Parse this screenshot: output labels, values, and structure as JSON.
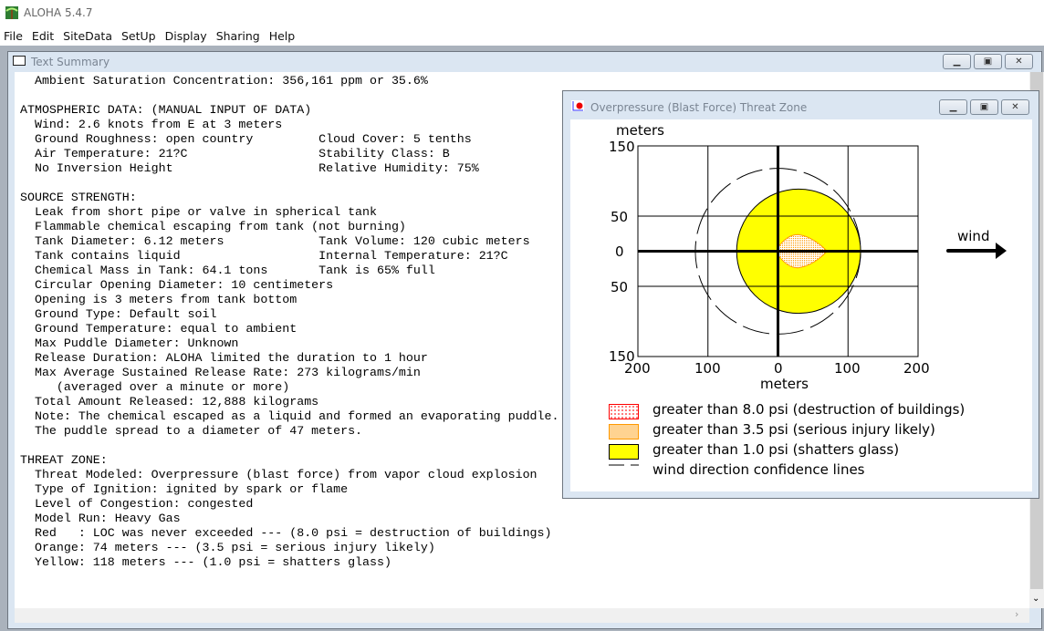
{
  "app": {
    "title": "ALOHA 5.4.7",
    "menu": [
      "File",
      "Edit",
      "SiteData",
      "SetUp",
      "Display",
      "Sharing",
      "Help"
    ]
  },
  "text_summary": {
    "title": "Text Summary",
    "lines": [
      {
        "l": "  Ambient Saturation Concentration: 356,161 ppm or 35.6%"
      },
      {
        "l": ""
      },
      {
        "l": "ATMOSPHERIC DATA: (MANUAL INPUT OF DATA)"
      },
      {
        "l": "  Wind: 2.6 knots from E at 3 meters"
      },
      {
        "l": "  Ground Roughness: open country",
        "r": "Cloud Cover: 5 tenths"
      },
      {
        "l": "  Air Temperature: 21?C",
        "r": "Stability Class: B"
      },
      {
        "l": "  No Inversion Height",
        "r": "Relative Humidity: 75%"
      },
      {
        "l": ""
      },
      {
        "l": "SOURCE STRENGTH:"
      },
      {
        "l": "  Leak from short pipe or valve in spherical tank"
      },
      {
        "l": "  Flammable chemical escaping from tank (not burning)"
      },
      {
        "l": "  Tank Diameter: 6.12 meters",
        "r": "Tank Volume: 120 cubic meters"
      },
      {
        "l": "  Tank contains liquid",
        "r": "Internal Temperature: 21?C"
      },
      {
        "l": "  Chemical Mass in Tank: 64.1 tons",
        "r": "Tank is 65% full"
      },
      {
        "l": "  Circular Opening Diameter: 10 centimeters"
      },
      {
        "l": "  Opening is 3 meters from tank bottom"
      },
      {
        "l": "  Ground Type: Default soil"
      },
      {
        "l": "  Ground Temperature: equal to ambient"
      },
      {
        "l": "  Max Puddle Diameter: Unknown"
      },
      {
        "l": "  Release Duration: ALOHA limited the duration to 1 hour"
      },
      {
        "l": "  Max Average Sustained Release Rate: 273 kilograms/min"
      },
      {
        "l": "     (averaged over a minute or more)"
      },
      {
        "l": "  Total Amount Released: 12,888 kilograms"
      },
      {
        "l": "  Note: The chemical escaped as a liquid and formed an evaporating puddle."
      },
      {
        "l": "  The puddle spread to a diameter of 47 meters."
      },
      {
        "l": ""
      },
      {
        "l": "THREAT ZONE:"
      },
      {
        "l": "  Threat Modeled: Overpressure (blast force) from vapor cloud explosion"
      },
      {
        "l": "  Type of Ignition: ignited by spark or flame"
      },
      {
        "l": "  Level of Congestion: congested"
      },
      {
        "l": "  Model Run: Heavy Gas"
      },
      {
        "l": "  Red   : LOC was never exceeded --- (8.0 psi = destruction of buildings)"
      },
      {
        "l": "  Orange: 74 meters --- (3.5 psi = serious injury likely)"
      },
      {
        "l": "  Yellow: 118 meters --- (1.0 psi = shatters glass)"
      }
    ]
  },
  "threat_window": {
    "title": "Overpressure (Blast Force) Threat Zone",
    "wind_label": "wind"
  },
  "chart_data": {
    "type": "threat-zone-plot",
    "ylabel": "meters",
    "xlabel": "meters",
    "xlim": [
      -200,
      200
    ],
    "ylim": [
      -150,
      150
    ],
    "x_ticks": [
      "200",
      "100",
      "0",
      "100",
      "200"
    ],
    "y_ticks": [
      "150",
      "50",
      "0",
      "50",
      "150"
    ],
    "grid": true,
    "wind_direction": "from E (arrow pointing right)",
    "zones": [
      {
        "name": "greater than 8.0 psi (destruction of buildings)",
        "color": "#ff0000",
        "distance_m": null
      },
      {
        "name": "greater than 3.5 psi (serious injury likely)",
        "color": "#ff9900",
        "distance_m": 74
      },
      {
        "name": "greater than 1.0 psi (shatters glass)",
        "color": "#ffff00",
        "distance_m": 118
      }
    ],
    "confidence_lines": {
      "name": "wind direction confidence lines",
      "radius_m": 118
    }
  }
}
